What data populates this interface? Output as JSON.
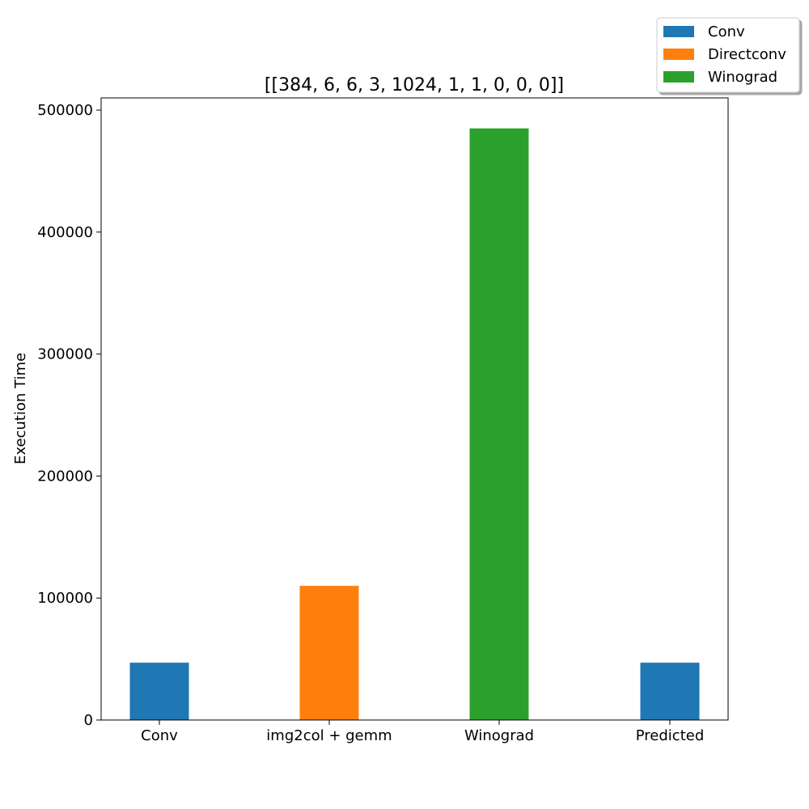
{
  "chart_data": {
    "type": "bar",
    "title": "[[384, 6, 6, 3, 1024, 1, 1, 0, 0, 0]]",
    "xlabel": "",
    "ylabel": "Execution Time",
    "categories": [
      "Conv",
      "img2col + gemm",
      "Winograd",
      "Predicted"
    ],
    "values": [
      47000,
      110000,
      485000,
      47000
    ],
    "bar_colors": [
      "#1f77b4",
      "#ff7f0e",
      "#2ca02c",
      "#1f77b4"
    ],
    "ylim": [
      0,
      510000
    ],
    "yticks": [
      0,
      100000,
      200000,
      300000,
      400000,
      500000
    ],
    "ytick_labels": [
      "0",
      "100000",
      "200000",
      "300000",
      "400000",
      "500000"
    ],
    "grid": false,
    "legend": {
      "placement": "top-right",
      "entries": [
        {
          "label": "Conv",
          "color": "#1f77b4"
        },
        {
          "label": "Directconv",
          "color": "#ff7f0e"
        },
        {
          "label": "Winograd",
          "color": "#2ca02c"
        }
      ]
    }
  }
}
